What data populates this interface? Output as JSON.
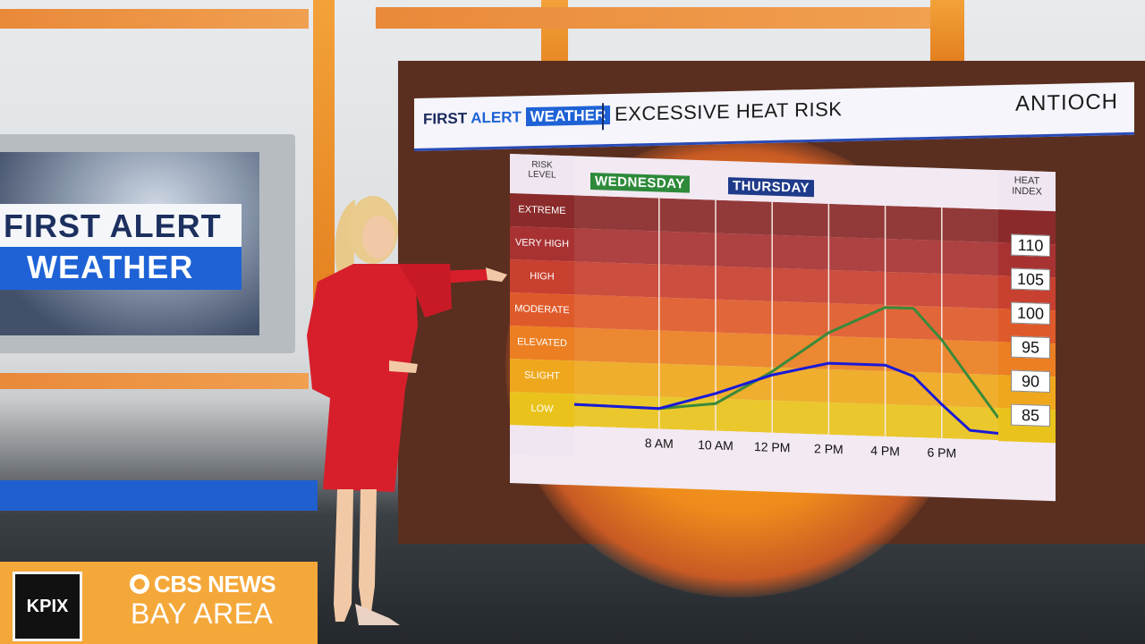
{
  "branding": {
    "first": "FIRST",
    "alert": "ALERT",
    "weather": "WEATHER",
    "side_top": "FIRST ALERT",
    "side_bottom": "WEATHER",
    "station": "KPIX",
    "network_line1": "CBS NEWS",
    "network_line2": "BAY AREA"
  },
  "header": {
    "title": "EXCESSIVE HEAT RISK",
    "location": "ANTIOCH"
  },
  "colors": {
    "wednesday": "#2e8a3a",
    "thursday": "#1e3a8a",
    "wed_line": "#3a8a3a",
    "thu_line": "#1a1ad8",
    "bands": [
      "#8a2a2a",
      "#a83232",
      "#c8402f",
      "#df5a2a",
      "#ec7f22",
      "#efa81d",
      "#e9c31c"
    ]
  },
  "chart_data": {
    "type": "line",
    "title": "EXCESSIVE HEAT RISK",
    "risk_header": [
      "RISK",
      "LEVEL"
    ],
    "heat_header": [
      "HEAT",
      "INDEX"
    ],
    "risk_levels": [
      "EXTREME",
      "VERY HIGH",
      "HIGH",
      "MODERATE",
      "ELEVATED",
      "SLIGHT",
      "LOW"
    ],
    "heat_index_ticks": [
      110,
      105,
      100,
      95,
      90,
      85
    ],
    "x_ticks": [
      "8 AM",
      "10 AM",
      "12 PM",
      "2 PM",
      "4 PM",
      "6 PM"
    ],
    "x_range": [
      5,
      20
    ],
    "ylim": [
      81,
      115
    ],
    "grid": true,
    "series": [
      {
        "name": "WEDNESDAY",
        "x": [
          5,
          8,
          10,
          12,
          14,
          16,
          17,
          18,
          20
        ],
        "values": [
          84.2,
          84.0,
          85.0,
          90.0,
          96.0,
          100.0,
          100.0,
          95.5,
          84.3
        ]
      },
      {
        "name": "THURSDAY",
        "x": [
          5,
          8,
          10,
          12,
          14,
          16,
          17,
          18,
          19,
          20
        ],
        "values": [
          84.2,
          84.0,
          86.5,
          89.5,
          91.5,
          91.5,
          90.0,
          86.0,
          82.3,
          82.0
        ]
      }
    ]
  }
}
